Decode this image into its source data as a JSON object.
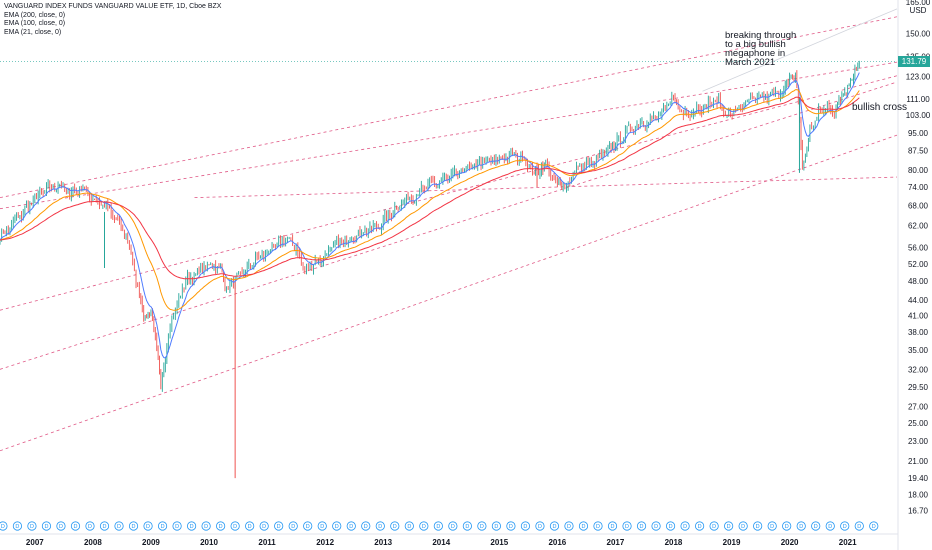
{
  "legend": {
    "title": "VANGUARD INDEX FUNDS VANGUARD VALUE ETF, 1D, Cboe BZX",
    "ema200": "EMA (200, close, 0)",
    "ema100": "EMA (100, close, 0)",
    "ema21": "EMA (21, close, 0)"
  },
  "currency": "USD",
  "last_price": "131.79",
  "annotations": {
    "breakout": [
      "breaking through",
      "to a big bullish",
      "megaphone in",
      "March 2021"
    ],
    "cross": "bullish cross"
  },
  "dividend_marker": "D",
  "colors": {
    "up": "#26a69a",
    "down": "#ef5350",
    "trend": "#e05a87",
    "ema_red": "#f23645",
    "ema_orange": "#ff9800",
    "ema_blue": "#4f7cff",
    "dividend": "#2196f3"
  },
  "chart_data": {
    "type": "line",
    "price_scale": "log",
    "y_ticks": [
      150.0,
      135.0,
      123.0,
      111.0,
      103.0,
      95.0,
      87.5,
      80.0,
      74.0,
      68.0,
      62.0,
      56.0,
      52.0,
      48.0,
      44.0,
      41.0,
      38.0,
      35.0,
      32.0,
      29.5,
      27.0,
      25.0,
      23.0,
      21.0,
      19.4,
      18.0,
      16.7
    ],
    "y_top_partial_label": "165.00",
    "x_ticks": [
      "2007",
      "2008",
      "2009",
      "2010",
      "2011",
      "2012",
      "2013",
      "2014",
      "2015",
      "2016",
      "2017",
      "2018",
      "2019",
      "2020",
      "2021"
    ],
    "ylim": [
      16.0,
      175.0
    ],
    "xlim": [
      2006.4,
      2021.85
    ],
    "series": [
      {
        "x": [
          2006.4,
          2006.6,
          2006.8,
          2007.0,
          2007.2,
          2007.4,
          2007.6,
          2007.8,
          2008.0,
          2008.2,
          2008.4,
          2008.6,
          2008.8,
          2008.9,
          2009.0,
          2009.1,
          2009.17,
          2009.3,
          2009.45,
          2009.6,
          2009.8,
          2010.0,
          2010.2,
          2010.3,
          2010.45,
          2010.6,
          2010.8,
          2011.0,
          2011.2,
          2011.35,
          2011.5,
          2011.65,
          2011.8,
          2012.0,
          2012.2,
          2012.4,
          2012.6,
          2012.8,
          2013.0,
          2013.2,
          2013.4,
          2013.6,
          2013.8,
          2014.0,
          2014.2,
          2014.4,
          2014.6,
          2014.8,
          2015.0,
          2015.2,
          2015.4,
          2015.6,
          2015.7,
          2015.8,
          2016.0,
          2016.1,
          2016.3,
          2016.5,
          2016.7,
          2016.9,
          2017.0,
          2017.2,
          2017.4,
          2017.6,
          2017.8,
          2018.0,
          2018.08,
          2018.2,
          2018.4,
          2018.6,
          2018.75,
          2018.98,
          2019.1,
          2019.3,
          2019.5,
          2019.7,
          2019.9,
          2020.0,
          2020.1,
          2020.15,
          2020.22,
          2020.35,
          2020.5,
          2020.65,
          2020.8,
          2020.9,
          2021.0,
          2021.1,
          2021.2
        ],
        "values": [
          59,
          62,
          66,
          70,
          73,
          75,
          72,
          74,
          70,
          68,
          64,
          58,
          45,
          40,
          42,
          35,
          29,
          38,
          43,
          48,
          50,
          52,
          51,
          46,
          48,
          50,
          53,
          55,
          57,
          58,
          56,
          50,
          52,
          54,
          57,
          58,
          60,
          61,
          63,
          67,
          70,
          72,
          75,
          76,
          78,
          80,
          82,
          83,
          84,
          86,
          85,
          79,
          80,
          82,
          75,
          73,
          80,
          82,
          84,
          88,
          90,
          96,
          99,
          101,
          103,
          113,
          105,
          104,
          106,
          108,
          110,
          102,
          106,
          110,
          112,
          113,
          116,
          120,
          123,
          110,
          80,
          96,
          104,
          107,
          106,
          112,
          118,
          124,
          132
        ]
      },
      {
        "name": "EMA (21, close, 0)"
      },
      {
        "name": "EMA (100, close, 0)"
      },
      {
        "name": "EMA (200, close, 0)"
      }
    ],
    "trendlines": [
      {
        "x": [
          2006.4,
          2021.85
        ],
        "y": [
          70.5,
          162.0
        ]
      },
      {
        "x": [
          2006.4,
          2021.85
        ],
        "y": [
          67.0,
          131.5
        ]
      },
      {
        "x": [
          2006.4,
          2021.85
        ],
        "y": [
          42.0,
          123.5
        ]
      },
      {
        "x": [
          2006.4,
          2021.85
        ],
        "y": [
          32.0,
          120.0
        ]
      },
      {
        "x": [
          2006.4,
          2021.85
        ],
        "y": [
          22.0,
          94.0
        ]
      },
      {
        "x": [
          2009.75,
          2021.85
        ],
        "y": [
          70.5,
          77.5
        ]
      },
      {
        "x": [
          2018.5,
          2021.85
        ],
        "y": [
          115.0,
          168.0
        ]
      }
    ]
  }
}
